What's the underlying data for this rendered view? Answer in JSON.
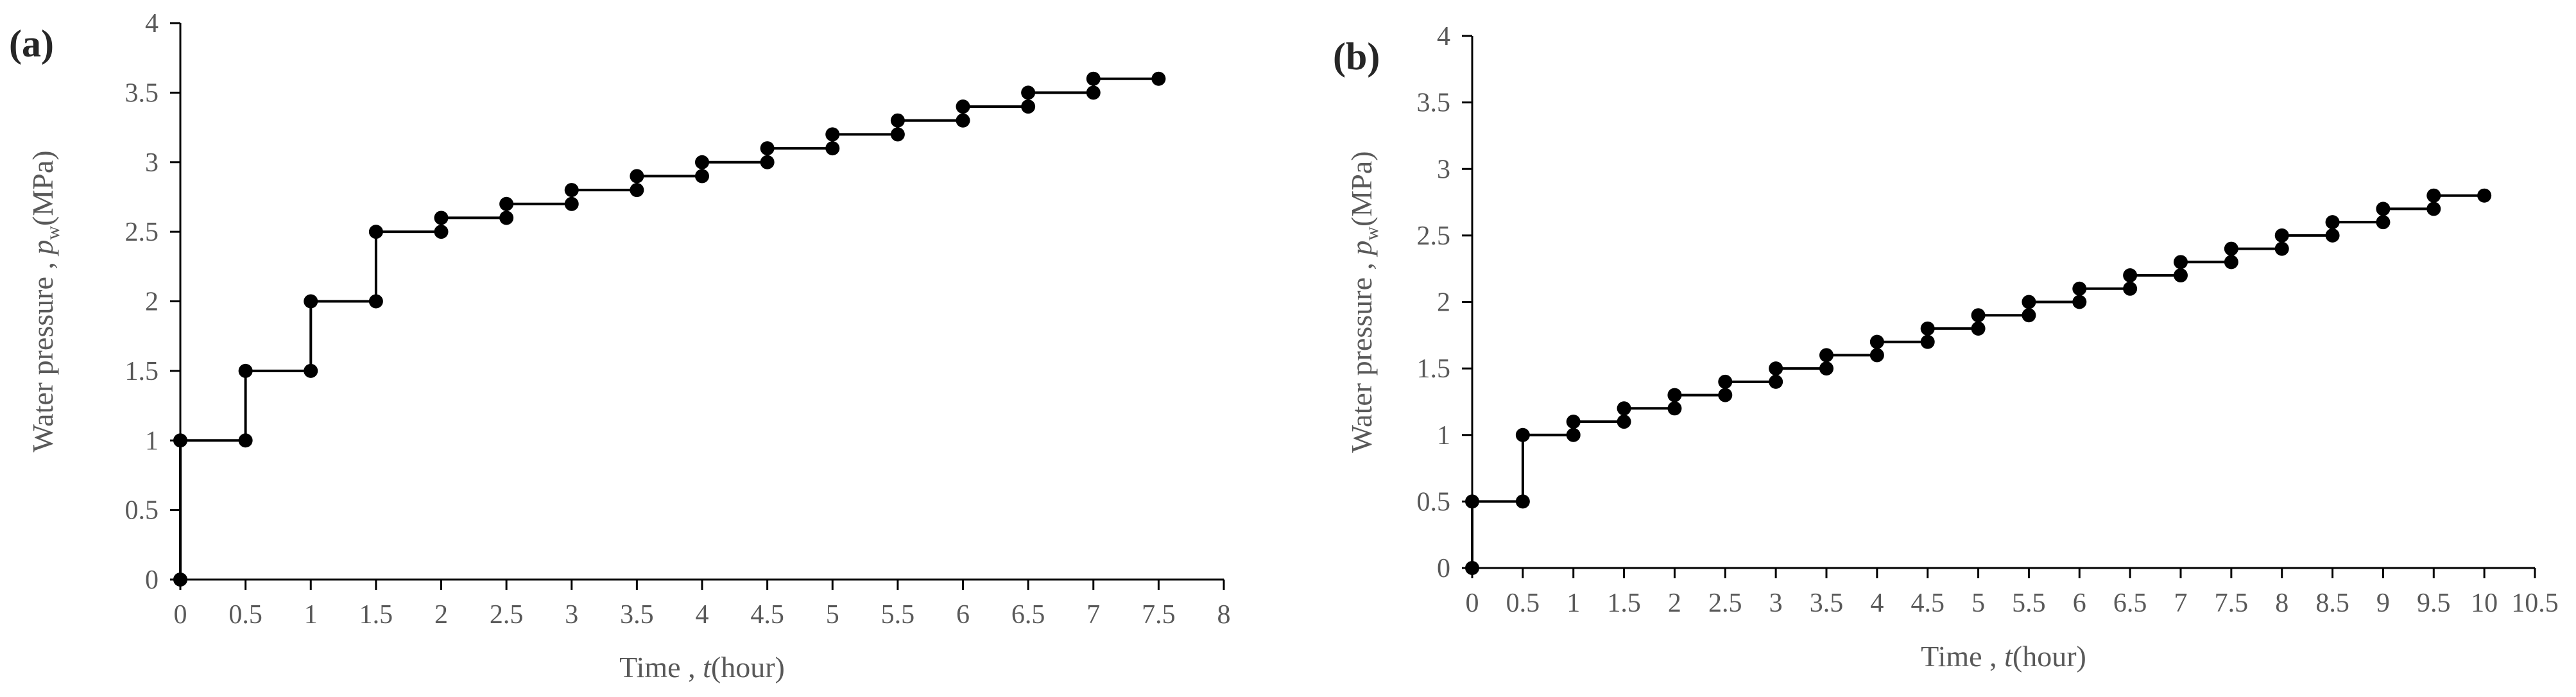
{
  "chart_data": [
    {
      "panel_label": "(a)",
      "type": "line",
      "step": true,
      "xlabel_prefix": "Time ,",
      "xlabel_var": "t",
      "xlabel_unit": "(hour)",
      "ylabel_prefix": "Water pressure ,",
      "ylabel_var": "p",
      "ylabel_sub": "w",
      "ylabel_unit": "(MPa)",
      "xlim": [
        0,
        8
      ],
      "ylim": [
        0,
        4
      ],
      "xticks": [
        "0",
        "0.5",
        "1",
        "1.5",
        "2",
        "2.5",
        "3",
        "3.5",
        "4",
        "4.5",
        "5",
        "5.5",
        "6",
        "6.5",
        "7",
        "7.5",
        "8"
      ],
      "yticks": [
        "0",
        "0.5",
        "1",
        "1.5",
        "2",
        "2.5",
        "3",
        "3.5",
        "4"
      ],
      "grid": false,
      "line_color": "#000000",
      "series": [
        {
          "x": [
            0,
            0,
            0.5,
            0.5,
            1,
            1,
            1.5,
            1.5,
            2,
            2,
            2.5,
            2.5,
            3,
            3,
            3.5,
            3.5,
            4,
            4,
            4.5,
            4.5,
            5,
            5,
            5.5,
            5.5,
            6,
            6,
            6.5,
            6.5,
            7,
            7,
            7.5
          ],
          "y": [
            0,
            1,
            1,
            1.5,
            1.5,
            2,
            2,
            2.5,
            2.5,
            2.6,
            2.6,
            2.7,
            2.7,
            2.8,
            2.8,
            2.9,
            2.9,
            3.0,
            3.0,
            3.1,
            3.1,
            3.2,
            3.2,
            3.3,
            3.3,
            3.4,
            3.4,
            3.5,
            3.5,
            3.6,
            3.6
          ]
        }
      ]
    },
    {
      "panel_label": "(b)",
      "type": "line",
      "step": true,
      "xlabel_prefix": "Time ,",
      "xlabel_var": "t",
      "xlabel_unit": "(hour)",
      "ylabel_prefix": "Water pressure ,",
      "ylabel_var": "p",
      "ylabel_sub": "w",
      "ylabel_unit": "(MPa)",
      "xlim": [
        0,
        10.5
      ],
      "ylim": [
        0,
        4
      ],
      "xticks": [
        "0",
        "0.5",
        "1",
        "1.5",
        "2",
        "2.5",
        "3",
        "3.5",
        "4",
        "4.5",
        "5",
        "5.5",
        "6",
        "6.5",
        "7",
        "7.5",
        "8",
        "8.5",
        "9",
        "9.5",
        "10",
        "10.5"
      ],
      "yticks": [
        "0",
        "0.5",
        "1",
        "1.5",
        "2",
        "2.5",
        "3",
        "3.5",
        "4"
      ],
      "grid": false,
      "line_color": "#000000",
      "series": [
        {
          "x": [
            0,
            0,
            0.5,
            0.5,
            1,
            1,
            1.5,
            1.5,
            2,
            2,
            2.5,
            2.5,
            3,
            3,
            3.5,
            3.5,
            4,
            4,
            4.5,
            4.5,
            5,
            5,
            5.5,
            5.5,
            6,
            6,
            6.5,
            6.5,
            7,
            7,
            7.5,
            7.5,
            8,
            8,
            8.5,
            8.5,
            9,
            9,
            9.5,
            9.5,
            10
          ],
          "y": [
            0,
            0.5,
            0.5,
            1.0,
            1.0,
            1.1,
            1.1,
            1.2,
            1.2,
            1.3,
            1.3,
            1.4,
            1.4,
            1.5,
            1.5,
            1.6,
            1.6,
            1.7,
            1.7,
            1.8,
            1.8,
            1.9,
            1.9,
            2.0,
            2.0,
            2.1,
            2.1,
            2.2,
            2.2,
            2.3,
            2.3,
            2.4,
            2.4,
            2.5,
            2.5,
            2.6,
            2.6,
            2.7,
            2.7,
            2.8,
            2.8
          ]
        }
      ]
    }
  ]
}
